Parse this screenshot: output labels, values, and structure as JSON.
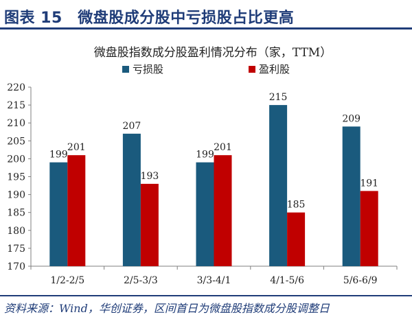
{
  "figure": {
    "title": "图表 15　微盘股成分股中亏损股占比更高",
    "source": "资料来源：Wind，华创证券，区间首日为微盘股指数成分股调整日"
  },
  "colors": {
    "header": "#1f3c78",
    "loss": "#1a5a7d",
    "profit": "#c00000"
  },
  "chart_data": {
    "type": "bar",
    "title": "微盘股指数成分股盈利情况分布（家，TTM）",
    "categories": [
      "1/2-2/5",
      "2/5-3/3",
      "3/3-4/1",
      "4/1-5/6",
      "5/6-6/9"
    ],
    "series": [
      {
        "name": "亏损股",
        "values": [
          199,
          207,
          199,
          215,
          209
        ]
      },
      {
        "name": "盈利股",
        "values": [
          201,
          193,
          201,
          185,
          191
        ]
      }
    ],
    "ylim": [
      170,
      220
    ],
    "yticks": [
      170,
      175,
      180,
      185,
      190,
      195,
      200,
      205,
      210,
      215,
      220
    ],
    "legend_position": "top-center",
    "grid": false,
    "xlabel": "",
    "ylabel": ""
  }
}
